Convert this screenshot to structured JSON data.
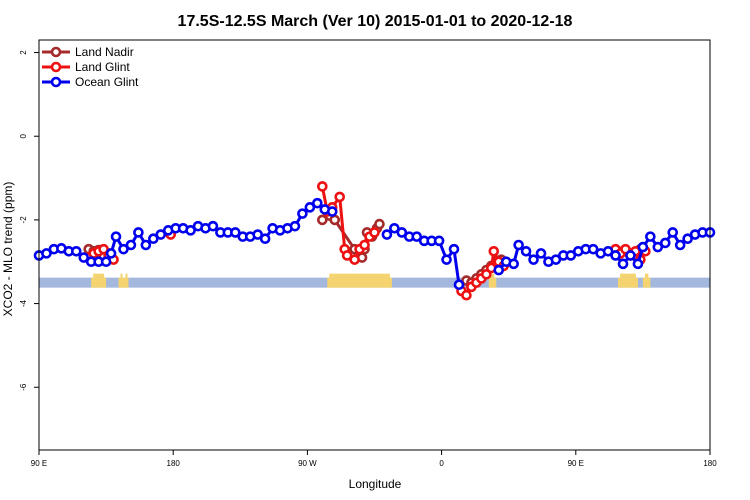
{
  "chart_data": {
    "type": "line",
    "title": "17.5S-12.5S March (Ver 10)   2015-01-01 to 2020-12-18",
    "xlabel": "Longitude",
    "ylabel": "XCO2 - MLO trend (ppm)",
    "xlim": [
      -90,
      180
    ],
    "ylim": [
      -7.5,
      2.3
    ],
    "x_ticks": [
      {
        "value": -90,
        "label": "90 E"
      },
      {
        "value": -36,
        "label": "180"
      },
      {
        "value": 18,
        "label": "90 W"
      },
      {
        "value": 72,
        "label": "0"
      },
      {
        "value": 126,
        "label": "90 E"
      },
      {
        "value": 180,
        "label": "180"
      }
    ],
    "y_ticks": [
      {
        "value": 2,
        "label": "2"
      },
      {
        "value": 0,
        "label": "0"
      },
      {
        "value": -2,
        "label": "-2"
      },
      {
        "value": -4,
        "label": "-4"
      },
      {
        "value": -6,
        "label": "-6"
      }
    ],
    "legend_position": "top-left",
    "land_mask": {
      "y_center": -3.5,
      "band_color": "#a3b8dc",
      "land_color": "#f5d36f",
      "land_segments": [
        [
          -69,
          -63
        ],
        [
          -58,
          -56
        ],
        [
          -56,
          -54
        ],
        [
          26,
          52
        ],
        [
          91,
          94
        ],
        [
          143,
          151
        ],
        [
          153,
          156
        ]
      ]
    },
    "series": [
      {
        "name": "Land Nadir",
        "color": "#a52a2a",
        "points": [
          [
            -70,
            -2.7
          ],
          [
            -68,
            -2.75
          ],
          [
            -66,
            -2.72
          ],
          [
            -64,
            -2.85
          ],
          [
            -62,
            -2.8
          ],
          [
            24,
            -2.0
          ],
          [
            27,
            -1.9
          ],
          [
            29,
            -2.0
          ],
          [
            37,
            -2.7
          ],
          [
            40,
            -2.9
          ],
          [
            41,
            -2.7
          ],
          [
            42,
            -2.3
          ],
          [
            44,
            -2.4
          ],
          [
            46,
            -2.2
          ],
          [
            47,
            -2.1
          ],
          [
            82,
            -3.45
          ],
          [
            84,
            -3.5
          ],
          [
            86,
            -3.4
          ],
          [
            88,
            -3.3
          ],
          [
            90,
            -3.2
          ],
          [
            92,
            -3.1
          ],
          [
            94,
            -3.0
          ],
          [
            96,
            -2.95
          ],
          [
            143,
            -2.75
          ],
          [
            146,
            -2.75
          ],
          [
            148,
            -2.8
          ],
          [
            150,
            -2.85
          ],
          [
            152,
            -2.7
          ]
        ]
      },
      {
        "name": "Land Glint",
        "color": "#ee1111",
        "points": [
          [
            -70,
            -2.9
          ],
          [
            -68,
            -2.8
          ],
          [
            -66,
            -2.75
          ],
          [
            -64,
            -2.7
          ],
          [
            -62,
            -2.85
          ],
          [
            -60,
            -2.95
          ],
          [
            -37,
            -2.35
          ],
          [
            24,
            -1.2
          ],
          [
            26,
            -1.8
          ],
          [
            28,
            -1.7
          ],
          [
            31,
            -1.45
          ],
          [
            33,
            -2.7
          ],
          [
            34,
            -2.85
          ],
          [
            37,
            -2.95
          ],
          [
            39,
            -2.7
          ],
          [
            41,
            -2.6
          ],
          [
            43,
            -2.4
          ],
          [
            45,
            -2.3
          ],
          [
            80,
            -3.7
          ],
          [
            82,
            -3.8
          ],
          [
            84,
            -3.6
          ],
          [
            86,
            -3.5
          ],
          [
            88,
            -3.4
          ],
          [
            90,
            -3.3
          ],
          [
            92,
            -3.15
          ],
          [
            93,
            -2.75
          ],
          [
            95,
            -3.0
          ],
          [
            97,
            -3.1
          ],
          [
            142,
            -2.7
          ],
          [
            144,
            -2.8
          ],
          [
            146,
            -2.7
          ],
          [
            148,
            -2.85
          ],
          [
            150,
            -2.75
          ],
          [
            152,
            -2.95
          ],
          [
            154,
            -2.75
          ]
        ]
      },
      {
        "name": "Ocean Glint",
        "color": "#0000ee",
        "points": [
          [
            -90,
            -2.85
          ],
          [
            -87,
            -2.8
          ],
          [
            -84,
            -2.7
          ],
          [
            -81,
            -2.68
          ],
          [
            -78,
            -2.75
          ],
          [
            -75,
            -2.75
          ],
          [
            -72,
            -2.9
          ],
          [
            -69,
            -3.0
          ],
          [
            -66,
            -3.0
          ],
          [
            -63,
            -3.0
          ],
          [
            -61,
            -2.8
          ],
          [
            -59,
            -2.4
          ],
          [
            -56,
            -2.7
          ],
          [
            -53,
            -2.6
          ],
          [
            -50,
            -2.3
          ],
          [
            -47,
            -2.6
          ],
          [
            -44,
            -2.45
          ],
          [
            -41,
            -2.35
          ],
          [
            -38,
            -2.25
          ],
          [
            -35,
            -2.2
          ],
          [
            -32,
            -2.2
          ],
          [
            -29,
            -2.25
          ],
          [
            -26,
            -2.15
          ],
          [
            -23,
            -2.2
          ],
          [
            -20,
            -2.15
          ],
          [
            -17,
            -2.3
          ],
          [
            -14,
            -2.3
          ],
          [
            -11,
            -2.3
          ],
          [
            -8,
            -2.4
          ],
          [
            -5,
            -2.4
          ],
          [
            -2,
            -2.35
          ],
          [
            1,
            -2.45
          ],
          [
            4,
            -2.2
          ],
          [
            7,
            -2.25
          ],
          [
            10,
            -2.2
          ],
          [
            13,
            -2.15
          ],
          [
            16,
            -1.85
          ],
          [
            19,
            -1.7
          ],
          [
            22,
            -1.6
          ],
          [
            25,
            -1.75
          ],
          [
            28,
            -1.8
          ],
          [
            50,
            -2.35
          ],
          [
            53,
            -2.2
          ],
          [
            56,
            -2.3
          ],
          [
            59,
            -2.4
          ],
          [
            62,
            -2.4
          ],
          [
            65,
            -2.5
          ],
          [
            68,
            -2.5
          ],
          [
            71,
            -2.5
          ],
          [
            74,
            -2.95
          ],
          [
            77,
            -2.7
          ],
          [
            79,
            -3.55
          ],
          [
            95,
            -3.2
          ],
          [
            98,
            -3.0
          ],
          [
            101,
            -3.05
          ],
          [
            103,
            -2.6
          ],
          [
            106,
            -2.75
          ],
          [
            109,
            -2.95
          ],
          [
            112,
            -2.8
          ],
          [
            115,
            -3.0
          ],
          [
            118,
            -2.95
          ],
          [
            121,
            -2.85
          ],
          [
            124,
            -2.85
          ],
          [
            127,
            -2.75
          ],
          [
            130,
            -2.7
          ],
          [
            133,
            -2.7
          ],
          [
            136,
            -2.8
          ],
          [
            139,
            -2.75
          ],
          [
            142,
            -2.85
          ],
          [
            145,
            -3.05
          ],
          [
            148,
            -2.85
          ],
          [
            151,
            -3.05
          ],
          [
            153,
            -2.65
          ],
          [
            156,
            -2.4
          ],
          [
            159,
            -2.65
          ],
          [
            162,
            -2.55
          ],
          [
            165,
            -2.3
          ],
          [
            168,
            -2.6
          ],
          [
            171,
            -2.45
          ],
          [
            174,
            -2.35
          ],
          [
            177,
            -2.3
          ],
          [
            180,
            -2.3
          ]
        ]
      }
    ]
  }
}
